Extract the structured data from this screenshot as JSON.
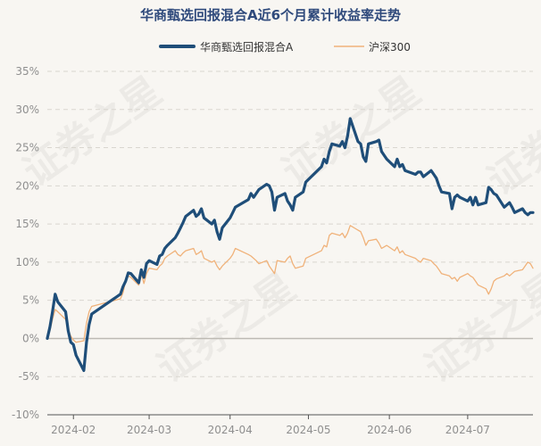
{
  "chart_data": {
    "type": "line",
    "title": "华商甄选回报混合A近6个月累计收益率走势",
    "ylim": [
      -10,
      35
    ],
    "yticks": [
      -10,
      -5,
      0,
      5,
      10,
      15,
      20,
      25,
      30,
      35
    ],
    "ytick_labels": [
      "-10%",
      "-5%",
      "0%",
      "5%",
      "10%",
      "15%",
      "20%",
      "25%",
      "30%",
      "35%"
    ],
    "xticks": [
      "2024-02-01",
      "2024-03-01",
      "2024-04-01",
      "2024-05-01",
      "2024-06-01",
      "2024-07-01"
    ],
    "xtick_labels": [
      "2024-02",
      "2024-03",
      "2024-04",
      "2024-05",
      "2024-06",
      "2024-07"
    ],
    "x_start": "2024-01-22",
    "x_end": "2024-07-26",
    "grid": true,
    "legend_position": "top-center",
    "series": [
      {
        "name": "华商甄选回报混合A",
        "color": "#1f4e79",
        "values": [
          [
            "2024-01-22",
            0.0
          ],
          [
            "2024-01-23",
            1.5
          ],
          [
            "2024-01-24",
            3.5
          ],
          [
            "2024-01-25",
            5.8
          ],
          [
            "2024-01-26",
            4.8
          ],
          [
            "2024-01-29",
            3.5
          ],
          [
            "2024-01-30",
            1.0
          ],
          [
            "2024-01-31",
            -0.5
          ],
          [
            "2024-02-01",
            -0.8
          ],
          [
            "2024-02-02",
            -2.2
          ],
          [
            "2024-02-05",
            -4.2
          ],
          [
            "2024-02-06",
            -0.5
          ],
          [
            "2024-02-07",
            1.8
          ],
          [
            "2024-02-08",
            3.2
          ],
          [
            "2024-02-19",
            5.8
          ],
          [
            "2024-02-20",
            6.8
          ],
          [
            "2024-02-21",
            7.5
          ],
          [
            "2024-02-22",
            8.6
          ],
          [
            "2024-02-23",
            8.5
          ],
          [
            "2024-02-26",
            7.3
          ],
          [
            "2024-02-27",
            9.0
          ],
          [
            "2024-02-28",
            8.0
          ],
          [
            "2024-02-29",
            9.8
          ],
          [
            "2024-03-01",
            10.2
          ],
          [
            "2024-03-04",
            9.7
          ],
          [
            "2024-03-05",
            10.8
          ],
          [
            "2024-03-06",
            11.0
          ],
          [
            "2024-03-07",
            11.8
          ],
          [
            "2024-03-08",
            12.2
          ],
          [
            "2024-03-11",
            13.2
          ],
          [
            "2024-03-12",
            13.8
          ],
          [
            "2024-03-13",
            14.5
          ],
          [
            "2024-03-14",
            15.2
          ],
          [
            "2024-03-15",
            16.0
          ],
          [
            "2024-03-18",
            16.8
          ],
          [
            "2024-03-19",
            16.0
          ],
          [
            "2024-03-20",
            16.3
          ],
          [
            "2024-03-21",
            17.0
          ],
          [
            "2024-03-22",
            15.8
          ],
          [
            "2024-03-25",
            15.0
          ],
          [
            "2024-03-26",
            15.5
          ],
          [
            "2024-03-27",
            14.0
          ],
          [
            "2024-03-28",
            13.0
          ],
          [
            "2024-03-29",
            14.5
          ],
          [
            "2024-04-01",
            15.8
          ],
          [
            "2024-04-02",
            16.5
          ],
          [
            "2024-04-03",
            17.2
          ],
          [
            "2024-04-08",
            18.2
          ],
          [
            "2024-04-09",
            19.0
          ],
          [
            "2024-04-10",
            18.5
          ],
          [
            "2024-04-11",
            19.0
          ],
          [
            "2024-04-12",
            19.5
          ],
          [
            "2024-04-15",
            20.2
          ],
          [
            "2024-04-16",
            20.0
          ],
          [
            "2024-04-17",
            19.2
          ],
          [
            "2024-04-18",
            16.8
          ],
          [
            "2024-04-19",
            18.5
          ],
          [
            "2024-04-22",
            19.0
          ],
          [
            "2024-04-23",
            18.0
          ],
          [
            "2024-04-24",
            17.5
          ],
          [
            "2024-04-25",
            16.8
          ],
          [
            "2024-04-26",
            18.5
          ],
          [
            "2024-04-29",
            19.2
          ],
          [
            "2024-04-30",
            20.5
          ],
          [
            "2024-05-06",
            22.5
          ],
          [
            "2024-05-07",
            23.5
          ],
          [
            "2024-05-08",
            23.0
          ],
          [
            "2024-05-09",
            24.5
          ],
          [
            "2024-05-10",
            25.5
          ],
          [
            "2024-05-13",
            25.2
          ],
          [
            "2024-05-14",
            25.8
          ],
          [
            "2024-05-15",
            25.0
          ],
          [
            "2024-05-16",
            26.5
          ],
          [
            "2024-05-17",
            28.8
          ],
          [
            "2024-05-20",
            25.8
          ],
          [
            "2024-05-21",
            25.5
          ],
          [
            "2024-05-22",
            23.8
          ],
          [
            "2024-05-23",
            23.2
          ],
          [
            "2024-05-24",
            25.5
          ],
          [
            "2024-05-27",
            25.8
          ],
          [
            "2024-05-28",
            26.0
          ],
          [
            "2024-05-29",
            24.5
          ],
          [
            "2024-05-30",
            24.0
          ],
          [
            "2024-05-31",
            23.5
          ],
          [
            "2024-06-03",
            22.5
          ],
          [
            "2024-06-04",
            23.5
          ],
          [
            "2024-06-05",
            22.5
          ],
          [
            "2024-06-06",
            22.8
          ],
          [
            "2024-06-07",
            22.0
          ],
          [
            "2024-06-11",
            21.5
          ],
          [
            "2024-06-12",
            21.8
          ],
          [
            "2024-06-13",
            21.8
          ],
          [
            "2024-06-14",
            21.2
          ],
          [
            "2024-06-17",
            22.0
          ],
          [
            "2024-06-18",
            21.5
          ],
          [
            "2024-06-19",
            21.0
          ],
          [
            "2024-06-20",
            20.0
          ],
          [
            "2024-06-21",
            19.2
          ],
          [
            "2024-06-24",
            19.0
          ],
          [
            "2024-06-25",
            17.0
          ],
          [
            "2024-06-26",
            18.5
          ],
          [
            "2024-06-27",
            18.8
          ],
          [
            "2024-06-28",
            18.5
          ],
          [
            "2024-07-01",
            18.0
          ],
          [
            "2024-07-02",
            18.5
          ],
          [
            "2024-07-03",
            17.5
          ],
          [
            "2024-07-04",
            18.5
          ],
          [
            "2024-07-05",
            17.5
          ],
          [
            "2024-07-08",
            17.8
          ],
          [
            "2024-07-09",
            19.8
          ],
          [
            "2024-07-10",
            19.5
          ],
          [
            "2024-07-11",
            19.0
          ],
          [
            "2024-07-12",
            18.8
          ],
          [
            "2024-07-15",
            17.2
          ],
          [
            "2024-07-16",
            17.5
          ],
          [
            "2024-07-17",
            17.8
          ],
          [
            "2024-07-18",
            17.2
          ],
          [
            "2024-07-19",
            16.5
          ],
          [
            "2024-07-22",
            17.0
          ],
          [
            "2024-07-23",
            16.5
          ],
          [
            "2024-07-24",
            16.2
          ],
          [
            "2024-07-25",
            16.5
          ],
          [
            "2024-07-26",
            16.5
          ]
        ]
      },
      {
        "name": "沪深300",
        "color": "#f0b27a",
        "values": [
          [
            "2024-01-22",
            0.0
          ],
          [
            "2024-01-23",
            1.0
          ],
          [
            "2024-01-24",
            2.5
          ],
          [
            "2024-01-25",
            3.8
          ],
          [
            "2024-01-26",
            3.5
          ],
          [
            "2024-01-29",
            2.5
          ],
          [
            "2024-01-30",
            1.2
          ],
          [
            "2024-01-31",
            0.3
          ],
          [
            "2024-02-01",
            -0.2
          ],
          [
            "2024-02-02",
            -0.5
          ],
          [
            "2024-02-05",
            -0.3
          ],
          [
            "2024-02-06",
            2.0
          ],
          [
            "2024-02-07",
            3.5
          ],
          [
            "2024-02-08",
            4.2
          ],
          [
            "2024-02-19",
            5.2
          ],
          [
            "2024-02-20",
            6.0
          ],
          [
            "2024-02-21",
            7.5
          ],
          [
            "2024-02-22",
            8.2
          ],
          [
            "2024-02-23",
            8.0
          ],
          [
            "2024-02-26",
            7.0
          ],
          [
            "2024-02-27",
            8.5
          ],
          [
            "2024-02-28",
            7.2
          ],
          [
            "2024-02-29",
            8.5
          ],
          [
            "2024-03-01",
            9.2
          ],
          [
            "2024-03-04",
            9.0
          ],
          [
            "2024-03-05",
            9.5
          ],
          [
            "2024-03-06",
            9.8
          ],
          [
            "2024-03-07",
            10.5
          ],
          [
            "2024-03-08",
            10.8
          ],
          [
            "2024-03-11",
            11.5
          ],
          [
            "2024-03-12",
            11.0
          ],
          [
            "2024-03-13",
            10.8
          ],
          [
            "2024-03-14",
            11.2
          ],
          [
            "2024-03-15",
            11.5
          ],
          [
            "2024-03-18",
            11.8
          ],
          [
            "2024-03-19",
            11.0
          ],
          [
            "2024-03-20",
            11.2
          ],
          [
            "2024-03-21",
            11.5
          ],
          [
            "2024-03-22",
            10.5
          ],
          [
            "2024-03-25",
            10.0
          ],
          [
            "2024-03-26",
            10.2
          ],
          [
            "2024-03-27",
            9.5
          ],
          [
            "2024-03-28",
            9.0
          ],
          [
            "2024-03-29",
            9.5
          ],
          [
            "2024-04-01",
            10.5
          ],
          [
            "2024-04-02",
            11.0
          ],
          [
            "2024-04-03",
            11.8
          ],
          [
            "2024-04-08",
            11.0
          ],
          [
            "2024-04-09",
            10.8
          ],
          [
            "2024-04-10",
            10.5
          ],
          [
            "2024-04-11",
            10.2
          ],
          [
            "2024-04-12",
            9.8
          ],
          [
            "2024-04-15",
            10.2
          ],
          [
            "2024-04-16",
            9.5
          ],
          [
            "2024-04-17",
            9.0
          ],
          [
            "2024-04-18",
            8.5
          ],
          [
            "2024-04-19",
            10.2
          ],
          [
            "2024-04-22",
            10.0
          ],
          [
            "2024-04-23",
            10.5
          ],
          [
            "2024-04-24",
            10.8
          ],
          [
            "2024-04-25",
            9.8
          ],
          [
            "2024-04-26",
            9.2
          ],
          [
            "2024-04-29",
            9.5
          ],
          [
            "2024-04-30",
            10.5
          ],
          [
            "2024-05-06",
            11.5
          ],
          [
            "2024-05-07",
            12.2
          ],
          [
            "2024-05-08",
            12.0
          ],
          [
            "2024-05-09",
            13.5
          ],
          [
            "2024-05-10",
            13.8
          ],
          [
            "2024-05-13",
            13.5
          ],
          [
            "2024-05-14",
            13.8
          ],
          [
            "2024-05-15",
            13.2
          ],
          [
            "2024-05-16",
            13.8
          ],
          [
            "2024-05-17",
            14.8
          ],
          [
            "2024-05-20",
            14.2
          ],
          [
            "2024-05-21",
            14.0
          ],
          [
            "2024-05-22",
            13.2
          ],
          [
            "2024-05-23",
            12.2
          ],
          [
            "2024-05-24",
            12.8
          ],
          [
            "2024-05-27",
            13.0
          ],
          [
            "2024-05-28",
            12.5
          ],
          [
            "2024-05-29",
            11.8
          ],
          [
            "2024-05-30",
            12.0
          ],
          [
            "2024-05-31",
            12.2
          ],
          [
            "2024-06-03",
            11.5
          ],
          [
            "2024-06-04",
            12.0
          ],
          [
            "2024-06-05",
            11.2
          ],
          [
            "2024-06-06",
            11.5
          ],
          [
            "2024-06-07",
            11.0
          ],
          [
            "2024-06-11",
            10.5
          ],
          [
            "2024-06-12",
            10.2
          ],
          [
            "2024-06-13",
            10.0
          ],
          [
            "2024-06-14",
            10.5
          ],
          [
            "2024-06-17",
            10.2
          ],
          [
            "2024-06-18",
            9.8
          ],
          [
            "2024-06-19",
            9.5
          ],
          [
            "2024-06-20",
            9.0
          ],
          [
            "2024-06-21",
            8.5
          ],
          [
            "2024-06-24",
            8.2
          ],
          [
            "2024-06-25",
            7.8
          ],
          [
            "2024-06-26",
            8.0
          ],
          [
            "2024-06-27",
            7.5
          ],
          [
            "2024-06-28",
            8.0
          ],
          [
            "2024-07-01",
            8.5
          ],
          [
            "2024-07-02",
            8.2
          ],
          [
            "2024-07-03",
            8.0
          ],
          [
            "2024-07-04",
            7.5
          ],
          [
            "2024-07-05",
            7.0
          ],
          [
            "2024-07-08",
            6.5
          ],
          [
            "2024-07-09",
            5.8
          ],
          [
            "2024-07-10",
            6.5
          ],
          [
            "2024-07-11",
            7.5
          ],
          [
            "2024-07-12",
            7.8
          ],
          [
            "2024-07-15",
            8.2
          ],
          [
            "2024-07-16",
            8.5
          ],
          [
            "2024-07-17",
            8.2
          ],
          [
            "2024-07-18",
            8.5
          ],
          [
            "2024-07-19",
            8.8
          ],
          [
            "2024-07-22",
            9.0
          ],
          [
            "2024-07-23",
            9.5
          ],
          [
            "2024-07-24",
            10.0
          ],
          [
            "2024-07-25",
            9.8
          ],
          [
            "2024-07-26",
            9.2
          ]
        ]
      }
    ]
  },
  "watermark": {
    "text": "证券之星"
  }
}
